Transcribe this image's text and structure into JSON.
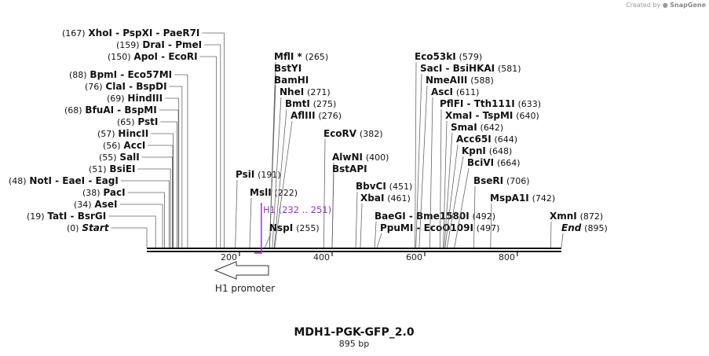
{
  "watermark": {
    "prefix": "Created by",
    "brand": "SnapGene"
  },
  "map": {
    "name": "MDH1-PGK-GFP_2.0",
    "length_label": "895 bp",
    "length": 895,
    "ticks": [
      {
        "value": 200,
        "label": "200"
      },
      {
        "value": 400,
        "label": "400"
      },
      {
        "value": 600,
        "label": "600"
      },
      {
        "value": 800,
        "label": "800"
      }
    ],
    "feature": {
      "label": "H1",
      "range": "(232 .. 251)",
      "start": 232,
      "end": 251
    },
    "promoter": {
      "label": "H1 promoter"
    },
    "left_sites": [
      {
        "pos": "(167)",
        "name": "XhoI  -  PspXI  -  PaeR7I",
        "bp": 167
      },
      {
        "pos": "(159)",
        "name": "DraI  -  PmeI",
        "bp": 159
      },
      {
        "pos": "(150)",
        "name": "ApoI  -  EcoRI",
        "bp": 150
      },
      {
        "pos": "(88)",
        "name": "BpmI  -  Eco57MI",
        "bp": 88
      },
      {
        "pos": "(76)",
        "name": "ClaI  -  BspDI",
        "bp": 76
      },
      {
        "pos": "(69)",
        "name": "HindIII",
        "bp": 69
      },
      {
        "pos": "(68)",
        "name": "BfuAI  -  BspMI",
        "bp": 68
      },
      {
        "pos": "(65)",
        "name": "PstI",
        "bp": 65
      },
      {
        "pos": "(57)",
        "name": "HincII",
        "bp": 57
      },
      {
        "pos": "(56)",
        "name": "AccI",
        "bp": 56
      },
      {
        "pos": "(55)",
        "name": "SalI",
        "bp": 55
      },
      {
        "pos": "(51)",
        "name": "BsiEI",
        "bp": 51
      },
      {
        "pos": "(48)",
        "name": "NotI  -  EaeI  -  EagI",
        "bp": 48
      },
      {
        "pos": "(38)",
        "name": "PacI",
        "bp": 38
      },
      {
        "pos": "(34)",
        "name": "AseI",
        "bp": 34
      },
      {
        "pos": "(19)",
        "name": "TatI  -  BsrGI",
        "bp": 19
      },
      {
        "pos": "(0)",
        "name": "Start",
        "bp": 0,
        "italic": true
      }
    ],
    "mid_sites": [
      {
        "name": "PsiI",
        "pos": "(191)",
        "bp": 191
      },
      {
        "name": "MslI",
        "pos": "(222)",
        "bp": 222
      },
      {
        "name": "MflI *",
        "pos": "(265)",
        "bp": 265
      },
      {
        "name": "BstYI",
        "pos": "",
        "bp": 265
      },
      {
        "name": "BamHI",
        "pos": "",
        "bp": 265
      },
      {
        "name": "NheI",
        "pos": "(271)",
        "bp": 271
      },
      {
        "name": "BmtI",
        "pos": "(275)",
        "bp": 275
      },
      {
        "name": "AflIII",
        "pos": "(276)",
        "bp": 276
      },
      {
        "name": "NspI",
        "pos": "(255)",
        "bp": 255
      },
      {
        "name": "EcoRV",
        "pos": "(382)",
        "bp": 382
      },
      {
        "name": "AlwNI",
        "pos": "(400)",
        "bp": 400
      },
      {
        "name": "BstAPI",
        "pos": "",
        "bp": 400
      },
      {
        "name": "BbvCI",
        "pos": "(451)",
        "bp": 451
      },
      {
        "name": "XbaI",
        "pos": "(461)",
        "bp": 461
      },
      {
        "name": "BaeGI  -  Bme1580I",
        "pos": "(492)",
        "bp": 492
      },
      {
        "name": "PpuMI  -  EcoO109I",
        "pos": "(497)",
        "bp": 497
      }
    ],
    "right_sites": [
      {
        "name": "Eco53kI",
        "pos": "(579)",
        "bp": 579
      },
      {
        "name": "SacI  -  BsiHKAI",
        "pos": "(581)",
        "bp": 581
      },
      {
        "name": "NmeAIII",
        "pos": "(588)",
        "bp": 588
      },
      {
        "name": "AscI",
        "pos": "(611)",
        "bp": 611
      },
      {
        "name": "PflFI  -  Tth111I",
        "pos": "(633)",
        "bp": 633
      },
      {
        "name": "XmaI  -  TspMI",
        "pos": "(640)",
        "bp": 640
      },
      {
        "name": "SmaI",
        "pos": "(642)",
        "bp": 642
      },
      {
        "name": "Acc65I",
        "pos": "(644)",
        "bp": 644
      },
      {
        "name": "KpnI",
        "pos": "(648)",
        "bp": 648
      },
      {
        "name": "BciVI",
        "pos": "(664)",
        "bp": 664
      },
      {
        "name": "BseRI",
        "pos": "(706)",
        "bp": 706
      },
      {
        "name": "MspA1I",
        "pos": "(742)",
        "bp": 742
      },
      {
        "name": "XmnI",
        "pos": "(872)",
        "bp": 872
      },
      {
        "name": "End",
        "pos": "(895)",
        "bp": 895,
        "italic": true
      }
    ]
  }
}
